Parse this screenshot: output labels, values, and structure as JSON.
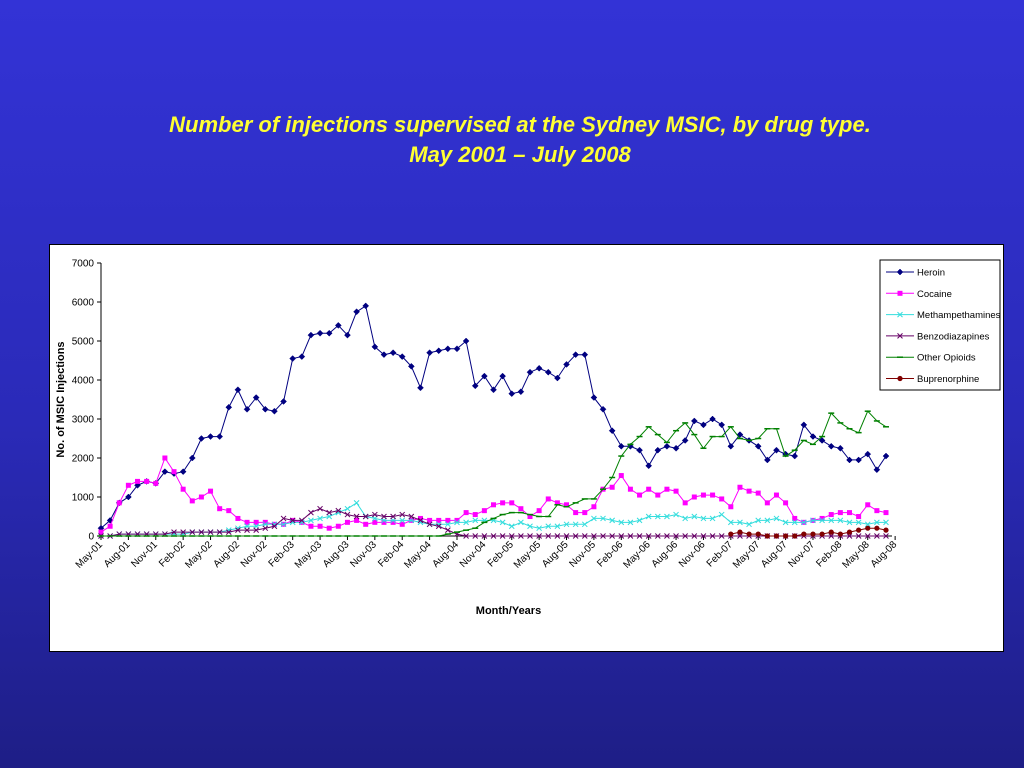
{
  "slide": {
    "title_line1": "Number of injections supervised at the Sydney MSIC, by drug type.",
    "title_line2": "May 2001 – July 2008"
  },
  "chart_data": {
    "type": "line",
    "xlabel": "Month/Years",
    "ylabel": "No. of MSIC Injections",
    "ylim": [
      0,
      7000
    ],
    "yticks": [
      0,
      1000,
      2000,
      3000,
      4000,
      5000,
      6000,
      7000
    ],
    "grid": false,
    "legend_position": "right",
    "x_tick_labels": [
      "May-01",
      "Aug-01",
      "Nov-01",
      "Feb-02",
      "May-02",
      "Aug-02",
      "Nov-02",
      "Feb-03",
      "May-03",
      "Aug-03",
      "Nov-03",
      "Feb-04",
      "May-04",
      "Aug-04",
      "Nov-04",
      "Feb-05",
      "May-05",
      "Aug-05",
      "Nov-05",
      "Feb-06",
      "May-06",
      "Aug-06",
      "Nov-06",
      "Feb-07",
      "May-07",
      "Aug-07",
      "Nov-07",
      "Feb-08",
      "May-08",
      "Aug-08"
    ],
    "series": [
      {
        "name": "Heroin",
        "color": "#000080",
        "marker": "diamond",
        "start_index": 0,
        "values": [
          200,
          400,
          850,
          1000,
          1300,
          1400,
          1350,
          1650,
          1600,
          1650,
          2000,
          2500,
          2550,
          2550,
          3300,
          3750,
          3250,
          3550,
          3250,
          3200,
          3450,
          4550,
          4600,
          5150,
          5200,
          5200,
          5400,
          5150,
          5750,
          5900,
          4850,
          4650,
          4700,
          4600,
          4350,
          3800,
          4700,
          4750,
          4800,
          4800,
          5000,
          3850,
          4100,
          3750,
          4100,
          3650,
          3700,
          4200,
          4300,
          4200,
          4050,
          4400,
          4650,
          4650,
          3550,
          3250,
          2700,
          2300,
          2300,
          2200,
          1800,
          2200,
          2300,
          2250,
          2450,
          2950,
          2850,
          3000,
          2850,
          2300,
          2600,
          2450,
          2300,
          1950,
          2200,
          2100,
          2050,
          2850,
          2550,
          2450,
          2300,
          2250,
          1950,
          1950,
          2100,
          1700,
          2050
        ]
      },
      {
        "name": "Cocaine",
        "color": "#ff00ff",
        "marker": "square",
        "start_index": 0,
        "values": [
          100,
          250,
          850,
          1300,
          1400,
          1400,
          1350,
          2000,
          1650,
          1200,
          900,
          1000,
          1150,
          700,
          650,
          450,
          350,
          350,
          350,
          300,
          300,
          400,
          350,
          250,
          250,
          200,
          250,
          350,
          400,
          300,
          350,
          350,
          350,
          300,
          400,
          450,
          400,
          400,
          400,
          400,
          600,
          550,
          650,
          800,
          850,
          850,
          700,
          500,
          650,
          950,
          850,
          800,
          600,
          600,
          750,
          1200,
          1250,
          1550,
          1200,
          1050,
          1200,
          1050,
          1200,
          1150,
          850,
          1000,
          1050,
          1050,
          950,
          750,
          1250,
          1150,
          1100,
          850,
          1050,
          850,
          450,
          350,
          400,
          450,
          550,
          600,
          600,
          500,
          800,
          650,
          600
        ]
      },
      {
        "name": "Methampethamines",
        "color": "#33dddd",
        "marker": "x",
        "start_index": 0,
        "values": [
          0,
          0,
          50,
          50,
          50,
          50,
          50,
          50,
          50,
          50,
          100,
          100,
          100,
          100,
          150,
          200,
          250,
          250,
          300,
          300,
          300,
          350,
          350,
          400,
          450,
          500,
          600,
          700,
          850,
          500,
          450,
          400,
          400,
          400,
          400,
          350,
          300,
          300,
          300,
          350,
          350,
          400,
          400,
          400,
          350,
          250,
          350,
          250,
          200,
          250,
          250,
          300,
          300,
          300,
          450,
          450,
          400,
          350,
          350,
          400,
          500,
          500,
          500,
          550,
          450,
          500,
          450,
          450,
          550,
          350,
          350,
          300,
          400,
          400,
          450,
          350,
          350,
          350,
          400,
          400,
          400,
          400,
          350,
          350,
          300,
          350,
          350
        ]
      },
      {
        "name": "Benzodiazapines",
        "color": "#660066",
        "marker": "cross",
        "start_index": 0,
        "values": [
          0,
          0,
          50,
          50,
          50,
          50,
          50,
          50,
          100,
          100,
          100,
          100,
          100,
          100,
          100,
          150,
          150,
          150,
          200,
          250,
          450,
          400,
          400,
          600,
          700,
          600,
          650,
          550,
          500,
          500,
          550,
          500,
          500,
          550,
          500,
          400,
          300,
          250,
          150,
          50,
          0,
          0,
          0,
          0,
          0,
          0,
          0,
          0,
          0,
          0,
          0,
          0,
          0,
          0,
          0,
          0,
          0,
          0,
          0,
          0,
          0,
          0,
          0,
          0,
          0,
          0,
          0,
          0,
          0,
          0,
          0,
          0,
          0,
          0,
          0,
          0,
          0,
          0,
          0,
          0,
          0,
          0,
          0,
          0,
          0,
          0,
          0
        ]
      },
      {
        "name": "Other Opioids",
        "color": "#008000",
        "marker": "dash",
        "start_index": 0,
        "values": [
          0,
          0,
          0,
          0,
          0,
          0,
          0,
          0,
          0,
          0,
          0,
          0,
          0,
          0,
          0,
          0,
          0,
          0,
          0,
          0,
          0,
          0,
          0,
          0,
          0,
          0,
          0,
          0,
          0,
          0,
          0,
          0,
          0,
          0,
          0,
          0,
          0,
          0,
          50,
          100,
          150,
          200,
          350,
          450,
          550,
          600,
          600,
          550,
          500,
          500,
          800,
          750,
          850,
          950,
          950,
          1200,
          1500,
          2050,
          2350,
          2550,
          2800,
          2600,
          2400,
          2700,
          2900,
          2600,
          2250,
          2550,
          2550,
          2800,
          2500,
          2450,
          2500,
          2750,
          2750,
          2050,
          2200,
          2450,
          2350,
          2550,
          3150,
          2900,
          2750,
          2650,
          3200,
          2950,
          2800
        ]
      },
      {
        "name": "Buprenorphine",
        "color": "#800000",
        "marker": "circle",
        "start_index": 69,
        "values": [
          50,
          100,
          50,
          50,
          0,
          0,
          0,
          0,
          50,
          50,
          50,
          100,
          50,
          100,
          150,
          200,
          200,
          150
        ]
      }
    ]
  }
}
